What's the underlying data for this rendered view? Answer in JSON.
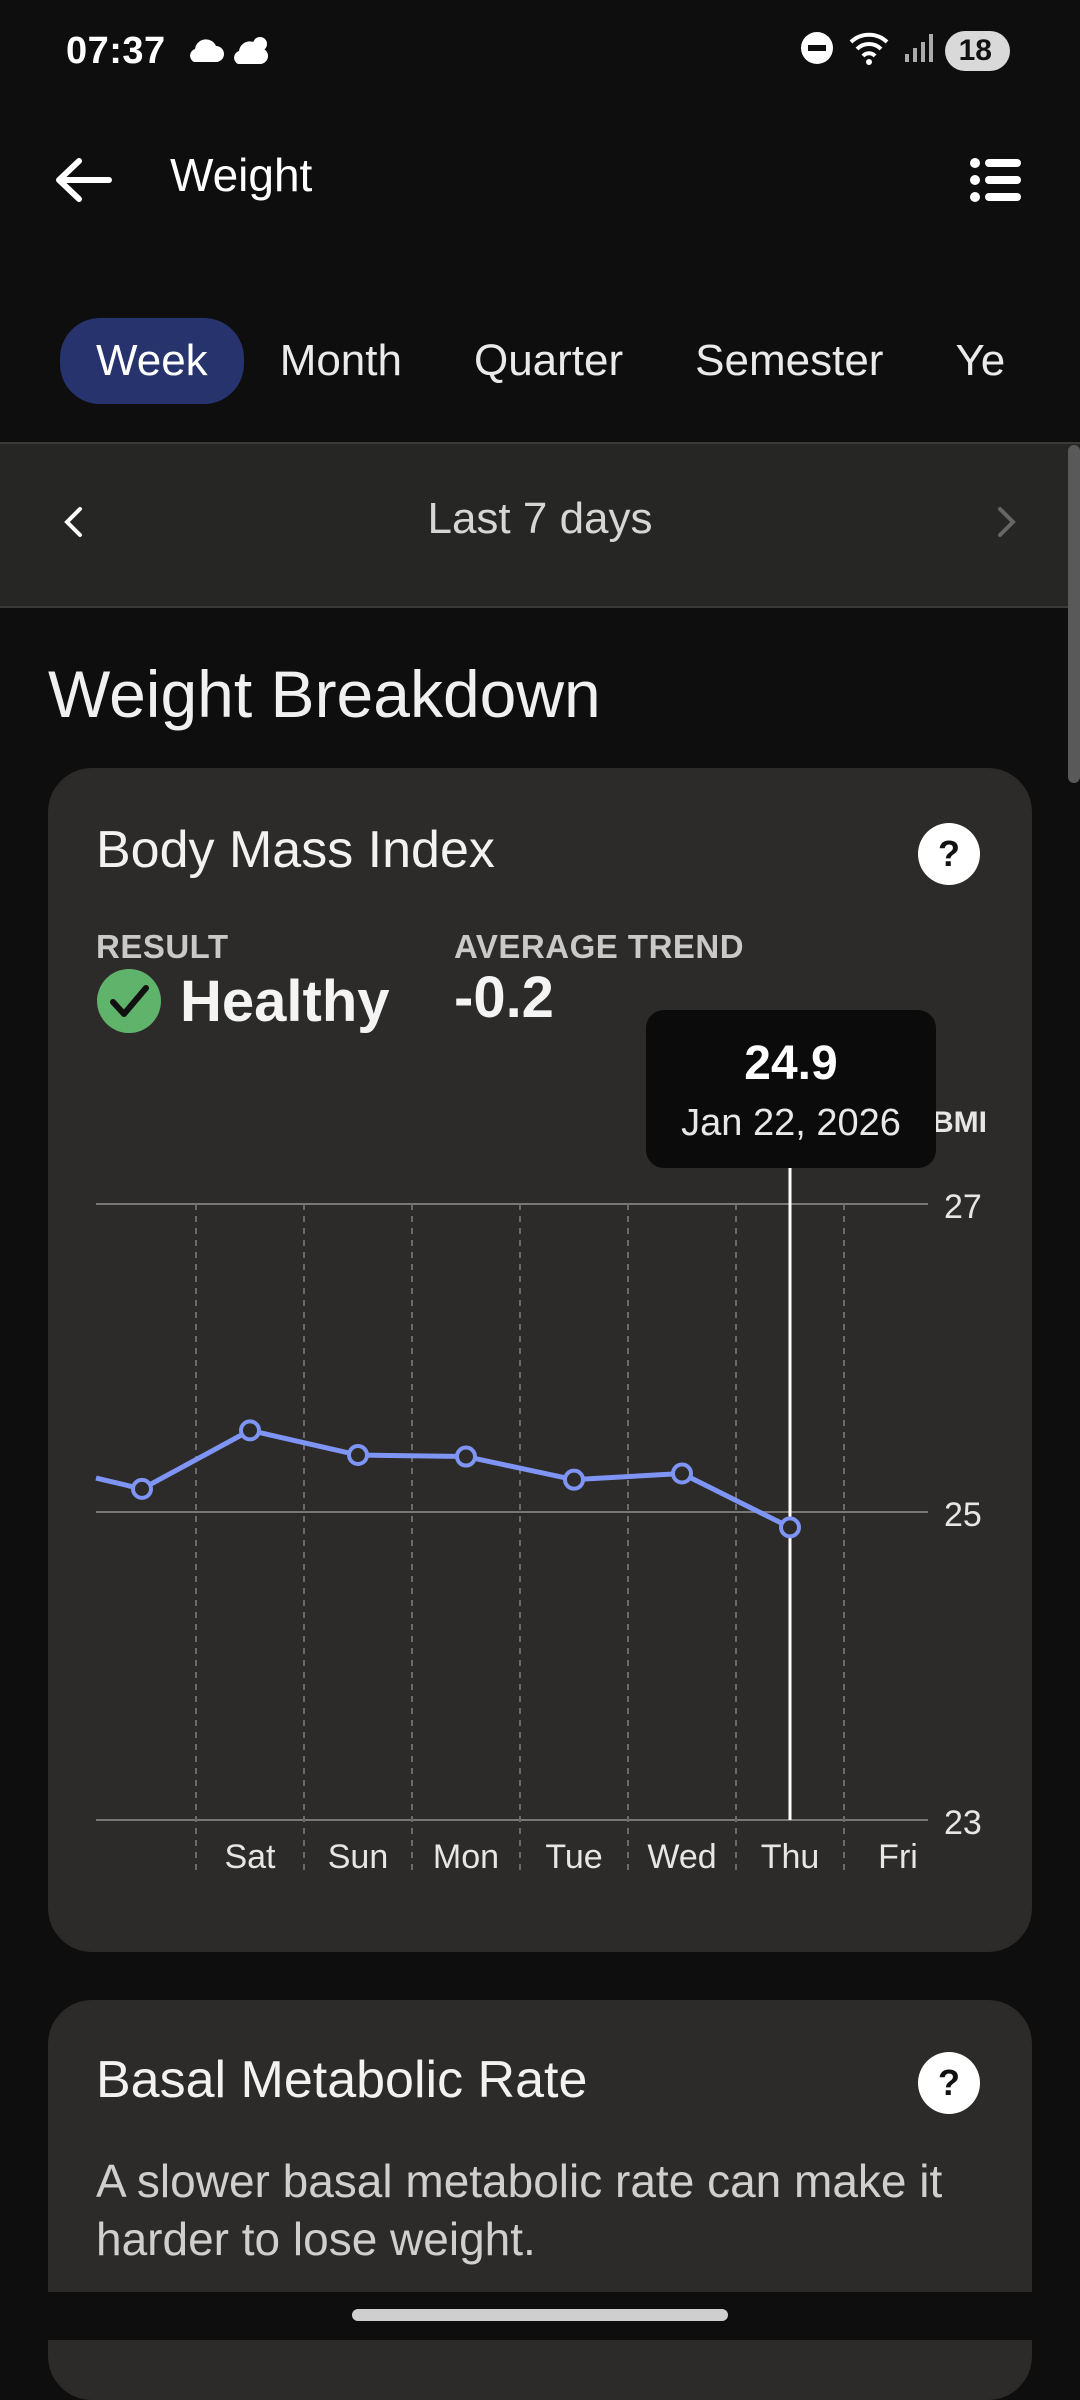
{
  "status": {
    "time": "07:37",
    "battery": "18",
    "icons": [
      "cloud-icon",
      "weather-icon",
      "dnd-icon",
      "wifi-icon",
      "signal-icon",
      "battery-icon"
    ]
  },
  "app_bar": {
    "title": "Weight"
  },
  "tabs": [
    {
      "label": "Week",
      "active": true
    },
    {
      "label": "Month",
      "active": false
    },
    {
      "label": "Quarter",
      "active": false
    },
    {
      "label": "Semester",
      "active": false
    },
    {
      "label": "Ye",
      "active": false
    }
  ],
  "period": {
    "label": "Last 7 days"
  },
  "section_title": "Weight Breakdown",
  "bmi_card": {
    "title": "Body Mass Index",
    "result_label": "RESULT",
    "result_value": "Healthy",
    "trend_label": "AVERAGE TREND",
    "trend_value": "-0.2",
    "tooltip": {
      "value": "24.9",
      "date": "Jan 22, 2026"
    }
  },
  "bmr_card": {
    "title": "Basal Metabolic Rate",
    "description": "A slower basal metabolic rate can make it harder to lose weight."
  },
  "colors": {
    "accent": "#26336d",
    "line": "#7f95f5",
    "healthy": "#5fb36b",
    "card": "#2c2b29"
  },
  "chart_data": {
    "type": "line",
    "categories": [
      "Sat",
      "Sun",
      "Mon",
      "Tue",
      "Wed",
      "Thu",
      "Fri"
    ],
    "x": [
      "Fri",
      "Sat",
      "Sun",
      "Mon",
      "Tue",
      "Wed",
      "Thu"
    ],
    "series": [
      {
        "values": [
          25.15,
          25.53,
          25.37,
          25.36,
          25.21,
          25.25,
          24.9
        ]
      }
    ],
    "ylabel": "BMI",
    "yticks": [
      23,
      25,
      27
    ],
    "ylim": [
      23,
      27
    ],
    "highlight": {
      "x": "Thu",
      "value": 24.9
    },
    "grid": true
  }
}
